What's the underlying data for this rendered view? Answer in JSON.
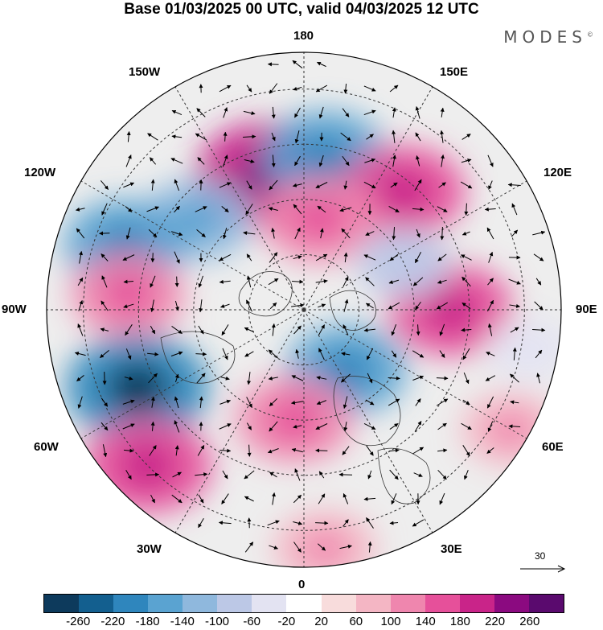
{
  "title": "Base 01/03/2025 00 UTC, valid 04/03/2025 12 UTC",
  "brand": "MODES",
  "brand_mark": "©",
  "longitude_labels": {
    "top": "180",
    "bottom": "0",
    "left": "90W",
    "right": "90E",
    "upper_left_1": "150W",
    "upper_left_2": "120W",
    "upper_right_1": "150E",
    "upper_right_2": "120E",
    "lower_left_1": "60W",
    "lower_left_2": "30W",
    "lower_right_1": "60E",
    "lower_right_2": "30E"
  },
  "vector_scale": {
    "label": "30",
    "value": 30
  },
  "colorbar": {
    "colors": [
      "#0d3a5c",
      "#135f8f",
      "#2f86bd",
      "#5aa3d1",
      "#8fb8dd",
      "#bcc8e6",
      "#e3e3f2",
      "#ffffff",
      "#f8dcdc",
      "#f4b6c4",
      "#ef86ae",
      "#e6509a",
      "#c92489",
      "#8b0a80",
      "#5a0a6e"
    ],
    "labels": [
      "-260",
      "-220",
      "-180",
      "-140",
      "-100",
      "-60",
      "-20",
      "20",
      "60",
      "100",
      "140",
      "180",
      "220",
      "260"
    ]
  },
  "field_anomalies": [
    {
      "lon": -165,
      "lat": 52,
      "value": 200
    },
    {
      "lon": 172,
      "lat": 48,
      "value": -150
    },
    {
      "lon": 140,
      "lat": 48,
      "value": 150
    },
    {
      "lon": 170,
      "lat": 65,
      "value": 130
    },
    {
      "lon": -130,
      "lat": 52,
      "value": -110
    },
    {
      "lon": -110,
      "lat": 38,
      "value": -140
    },
    {
      "lon": -95,
      "lat": 42,
      "value": 120
    },
    {
      "lon": -65,
      "lat": 40,
      "value": -200
    },
    {
      "lon": -45,
      "lat": 30,
      "value": 160
    },
    {
      "lon": 90,
      "lat": 50,
      "value": 150
    },
    {
      "lon": 35,
      "lat": 70,
      "value": -140
    },
    {
      "lon": -5,
      "lat": 60,
      "value": 130
    },
    {
      "lon": 5,
      "lat": 25,
      "value": 90
    },
    {
      "lon": 60,
      "lat": 25,
      "value": 80
    },
    {
      "lon": 115,
      "lat": 60,
      "value": -70
    },
    {
      "lon": 80,
      "lat": 28,
      "value": -40
    }
  ]
}
